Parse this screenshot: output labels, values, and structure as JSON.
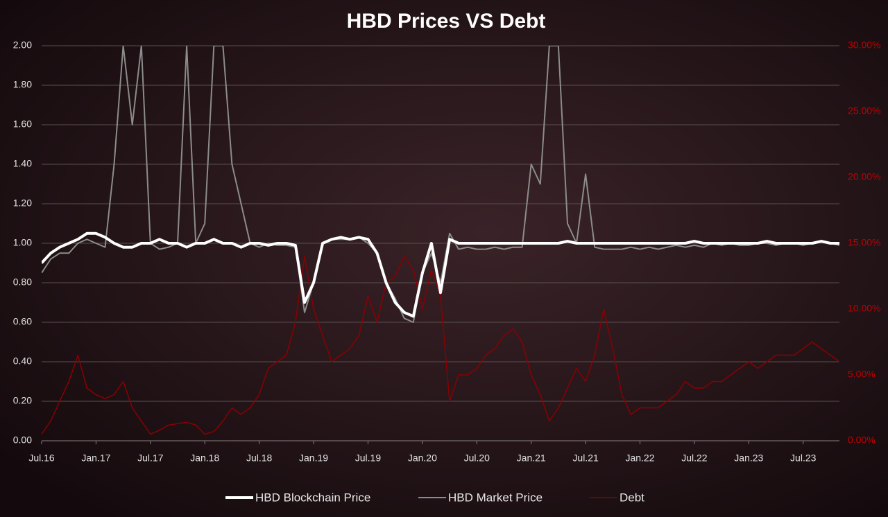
{
  "chart_data": {
    "type": "line",
    "title": "HBD Prices VS Debt",
    "categories": [
      "Jul.16",
      null,
      null,
      null,
      null,
      null,
      "Jan.17",
      null,
      null,
      null,
      null,
      null,
      "Jul.17",
      null,
      null,
      null,
      null,
      null,
      "Jan.18",
      null,
      null,
      null,
      null,
      null,
      "Jul.18",
      null,
      null,
      null,
      null,
      null,
      "Jan.19",
      null,
      null,
      null,
      null,
      null,
      "Jul.19",
      null,
      null,
      null,
      null,
      null,
      "Jan.20",
      null,
      null,
      null,
      null,
      null,
      "Jul.20",
      null,
      null,
      null,
      null,
      null,
      "Jan.21",
      null,
      null,
      null,
      null,
      null,
      "Jul.21",
      null,
      null,
      null,
      null,
      null,
      "Jan.22",
      null,
      null,
      null,
      null,
      null,
      "Jul.22",
      null,
      null,
      null,
      null,
      null,
      "Jan.23",
      null,
      null,
      null,
      null,
      null,
      "Jul.23",
      null,
      null,
      null,
      null
    ],
    "series": [
      {
        "name": "HBD Blockchain Price",
        "color": "#ffffff",
        "line_width": 4,
        "axis": "y",
        "values": [
          0.9,
          0.95,
          0.98,
          1.0,
          1.02,
          1.05,
          1.05,
          1.03,
          1.0,
          0.98,
          0.98,
          1.0,
          1.0,
          1.02,
          1.0,
          1.0,
          0.98,
          1.0,
          1.0,
          1.02,
          1.0,
          1.0,
          0.98,
          1.0,
          1.0,
          0.99,
          1.0,
          1.0,
          0.99,
          0.7,
          0.8,
          1.0,
          1.02,
          1.03,
          1.02,
          1.03,
          1.02,
          0.95,
          0.8,
          0.7,
          0.65,
          0.63,
          0.85,
          1.0,
          0.75,
          1.02,
          1.0,
          1.0,
          1.0,
          1.0,
          1.0,
          1.0,
          1.0,
          1.0,
          1.0,
          1.0,
          1.0,
          1.0,
          1.01,
          1.0,
          1.0,
          1.0,
          1.0,
          1.0,
          1.0,
          1.0,
          1.0,
          1.0,
          1.0,
          1.0,
          1.0,
          1.0,
          1.01,
          1.0,
          1.0,
          1.0,
          1.0,
          1.0,
          1.0,
          1.0,
          1.01,
          1.0,
          1.0,
          1.0,
          1.0,
          1.0,
          1.01,
          1.0,
          1.0
        ]
      },
      {
        "name": "HBD Market Price",
        "color": "#8c8c8c",
        "line_width": 2,
        "axis": "y",
        "values": [
          0.85,
          0.92,
          0.95,
          0.95,
          1.0,
          1.02,
          1.0,
          0.98,
          1.4,
          2.0,
          1.6,
          2.0,
          1.0,
          0.97,
          0.98,
          1.0,
          2.0,
          1.0,
          1.1,
          2.0,
          2.0,
          1.4,
          1.2,
          1.0,
          0.98,
          1.0,
          0.99,
          0.99,
          0.98,
          0.65,
          0.8,
          1.0,
          1.02,
          1.02,
          1.02,
          1.03,
          1.0,
          0.95,
          0.8,
          0.72,
          0.62,
          0.6,
          0.85,
          0.95,
          0.8,
          1.05,
          0.97,
          0.98,
          0.97,
          0.97,
          0.98,
          0.97,
          0.98,
          0.98,
          1.4,
          1.3,
          2.0,
          2.0,
          1.1,
          1.0,
          1.35,
          0.98,
          0.97,
          0.97,
          0.97,
          0.98,
          0.97,
          0.98,
          0.97,
          0.98,
          0.99,
          0.98,
          0.99,
          0.98,
          1.0,
          0.99,
          1.0,
          0.99,
          0.99,
          1.0,
          1.0,
          0.99,
          1.0,
          1.0,
          0.99,
          1.0,
          1.01,
          1.0,
          0.99
        ]
      },
      {
        "name": "Debt",
        "color": "#8b0000",
        "line_width": 1.5,
        "axis": "y2",
        "values": [
          0.5,
          1.5,
          3,
          4.5,
          6.5,
          4,
          3.5,
          3.2,
          3.5,
          4.5,
          2.5,
          1.5,
          0.5,
          0.8,
          1.2,
          1.3,
          1.4,
          1.2,
          0.5,
          0.7,
          1.5,
          2.5,
          2,
          2.5,
          3.5,
          5.5,
          6,
          6.5,
          9,
          14,
          10,
          8,
          6,
          6.5,
          7,
          8,
          11,
          9,
          12,
          12.5,
          14,
          13,
          10,
          13,
          11,
          3,
          5,
          5,
          5.5,
          6.5,
          7,
          8,
          8.5,
          7.5,
          5,
          3.5,
          1.5,
          2.5,
          4,
          5.5,
          4.5,
          6.5,
          10,
          7,
          3.5,
          2,
          2.5,
          2.5,
          2.5,
          3,
          3.5,
          4.5,
          4,
          4,
          4.5,
          4.5,
          5,
          5.5,
          6,
          5.5,
          6,
          6.5,
          6.5,
          6.5,
          7,
          7.5,
          7,
          6.5,
          6
        ]
      }
    ],
    "ylim": [
      0,
      2
    ],
    "yticks": [
      {
        "value": 0,
        "label": "0.00"
      },
      {
        "value": 0.2,
        "label": "0.20"
      },
      {
        "value": 0.4,
        "label": "0.40"
      },
      {
        "value": 0.6,
        "label": "0.60"
      },
      {
        "value": 0.8,
        "label": "0.80"
      },
      {
        "value": 1,
        "label": "1.00"
      },
      {
        "value": 1.2,
        "label": "1.20"
      },
      {
        "value": 1.4,
        "label": "1.40"
      },
      {
        "value": 1.6,
        "label": "1.60"
      },
      {
        "value": 1.8,
        "label": "1.80"
      },
      {
        "value": 2,
        "label": "2.00"
      }
    ],
    "y2lim": [
      0,
      30
    ],
    "y2ticks": [
      {
        "value": 0,
        "label": "0.00%"
      },
      {
        "value": 5,
        "label": "5.00%"
      },
      {
        "value": 10,
        "label": "10.00%"
      },
      {
        "value": 15,
        "label": "15.00%"
      },
      {
        "value": 20,
        "label": "20.00%"
      },
      {
        "value": 25,
        "label": "25.00%"
      },
      {
        "value": 30,
        "label": "30.00%"
      }
    ],
    "grid": true,
    "legend": "bottom"
  }
}
